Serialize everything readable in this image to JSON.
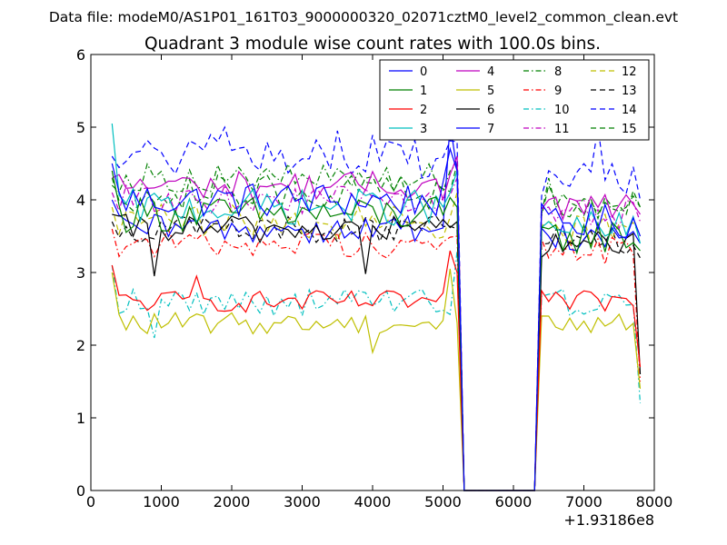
{
  "header": {
    "file_label": "Data file: modeM0/AS1P01_161T03_9000000320_02071cztM0_level2_common_clean.evt",
    "title": "Quadrant 3 module wise count rates with 100.0s bins."
  },
  "chart_data": {
    "type": "line",
    "title": "Quadrant 3 module wise count rates with 100.0s bins.",
    "xlabel": "",
    "ylabel": "",
    "x_offset_label": "+1.93186e8",
    "xlim": [
      0,
      8000
    ],
    "ylim": [
      0,
      6
    ],
    "x_ticks": [
      0,
      1000,
      2000,
      3000,
      4000,
      5000,
      6000,
      7000,
      8000
    ],
    "x_tick_labels": [
      "0",
      "1000",
      "2000",
      "3000",
      "4000",
      "5000",
      "6000",
      "7000",
      "8000"
    ],
    "y_ticks": [
      0,
      1,
      2,
      3,
      4,
      5,
      6
    ],
    "y_tick_labels": [
      "0",
      "1",
      "2",
      "3",
      "4",
      "5",
      "6"
    ],
    "grid": false,
    "legend_position": "top-right",
    "x_segments": [
      {
        "start": 300,
        "end": 5200,
        "step": 100
      },
      {
        "start": 5300,
        "end": 6300,
        "step": 100
      },
      {
        "start": 6400,
        "end": 7800,
        "step": 100
      }
    ],
    "series": [
      {
        "name": "0",
        "color": "#0000ff",
        "dash": "solid",
        "level1": 4.0,
        "level2": 3.7,
        "amp": 0.25,
        "anchors": [
          [
            300,
            4.5
          ],
          [
            5100,
            4.7
          ],
          [
            5200,
            4.4
          ],
          [
            6500,
            3.8
          ],
          [
            7800,
            3.5
          ]
        ]
      },
      {
        "name": "1",
        "color": "#008000",
        "dash": "solid",
        "level1": 3.8,
        "level2": 3.5,
        "amp": 0.25,
        "anchors": [
          [
            300,
            4.4
          ],
          [
            5200,
            3.9
          ],
          [
            6500,
            3.6
          ],
          [
            7800,
            3.3
          ]
        ]
      },
      {
        "name": "2",
        "color": "#ff0000",
        "dash": "solid",
        "level1": 2.6,
        "level2": 2.6,
        "amp": 0.15,
        "anchors": [
          [
            300,
            3.1
          ],
          [
            1500,
            2.95
          ],
          [
            5100,
            3.3
          ],
          [
            5200,
            3.0
          ],
          [
            6500,
            2.6
          ],
          [
            7800,
            1.7
          ]
        ]
      },
      {
        "name": "3",
        "color": "#00bfbf",
        "dash": "solid",
        "level1": 3.9,
        "level2": 3.6,
        "amp": 0.25,
        "anchors": [
          [
            300,
            5.05
          ],
          [
            5200,
            4.4
          ],
          [
            6500,
            3.7
          ],
          [
            7800,
            3.4
          ]
        ]
      },
      {
        "name": "4",
        "color": "#bf00bf",
        "dash": "solid",
        "level1": 4.2,
        "level2": 3.9,
        "amp": 0.2,
        "anchors": [
          [
            300,
            4.3
          ],
          [
            5200,
            4.6
          ],
          [
            6500,
            4.0
          ],
          [
            7800,
            3.8
          ]
        ]
      },
      {
        "name": "5",
        "color": "#bfbf00",
        "dash": "solid",
        "level1": 2.3,
        "level2": 2.3,
        "amp": 0.15,
        "anchors": [
          [
            300,
            3.0
          ],
          [
            4000,
            1.9
          ],
          [
            5100,
            3.05
          ],
          [
            6500,
            2.4
          ],
          [
            7800,
            1.4
          ]
        ]
      },
      {
        "name": "6",
        "color": "#000000",
        "dash": "solid",
        "level1": 3.6,
        "level2": 3.4,
        "amp": 0.2,
        "anchors": [
          [
            300,
            3.8
          ],
          [
            900,
            2.95
          ],
          [
            3900,
            2.98
          ],
          [
            5200,
            3.7
          ],
          [
            6500,
            3.3
          ],
          [
            7800,
            1.6
          ]
        ]
      },
      {
        "name": "7",
        "color": "#0000ff",
        "dash": "solid",
        "level1": 3.6,
        "level2": 3.5,
        "amp": 0.2,
        "anchors": [
          [
            300,
            4.0
          ],
          [
            5100,
            5.05
          ],
          [
            5200,
            4.4
          ],
          [
            6500,
            3.5
          ],
          [
            7800,
            3.4
          ]
        ]
      },
      {
        "name": "8",
        "color": "#008000",
        "dash": "dashdot",
        "level1": 4.3,
        "level2": 4.0,
        "amp": 0.2,
        "anchors": [
          [
            300,
            4.2
          ],
          [
            5200,
            4.5
          ],
          [
            6500,
            4.3
          ],
          [
            7800,
            3.9
          ]
        ]
      },
      {
        "name": "9",
        "color": "#ff0000",
        "dash": "dashdot",
        "level1": 3.4,
        "level2": 3.3,
        "amp": 0.2,
        "anchors": [
          [
            300,
            3.6
          ],
          [
            5200,
            3.5
          ],
          [
            6500,
            3.2
          ],
          [
            7800,
            1.5
          ]
        ]
      },
      {
        "name": "10",
        "color": "#00bfbf",
        "dash": "dashdot",
        "level1": 2.6,
        "level2": 2.6,
        "amp": 0.2,
        "anchors": [
          [
            300,
            3.1
          ],
          [
            900,
            2.1
          ],
          [
            5200,
            3.3
          ],
          [
            6500,
            2.7
          ],
          [
            7800,
            1.2
          ]
        ]
      },
      {
        "name": "11",
        "color": "#bf00bf",
        "dash": "dashdot",
        "level1": 4.0,
        "level2": 3.8,
        "amp": 0.2,
        "anchors": [
          [
            300,
            4.1
          ],
          [
            5200,
            4.3
          ],
          [
            6500,
            3.9
          ],
          [
            7800,
            3.7
          ]
        ]
      },
      {
        "name": "12",
        "color": "#bfbf00",
        "dash": "dashed",
        "level1": 3.7,
        "level2": 3.6,
        "amp": 0.25,
        "anchors": [
          [
            300,
            3.9
          ],
          [
            5200,
            4.1
          ],
          [
            6500,
            3.7
          ],
          [
            7800,
            3.5
          ]
        ]
      },
      {
        "name": "13",
        "color": "#000000",
        "dash": "dashed",
        "level1": 3.6,
        "level2": 3.4,
        "amp": 0.2,
        "anchors": [
          [
            300,
            3.7
          ],
          [
            5200,
            3.6
          ],
          [
            6500,
            3.4
          ],
          [
            7800,
            3.2
          ]
        ]
      },
      {
        "name": "14",
        "color": "#0000ff",
        "dash": "dashed",
        "level1": 4.6,
        "level2": 4.3,
        "amp": 0.3,
        "anchors": [
          [
            300,
            4.6
          ],
          [
            1900,
            5.0
          ],
          [
            3500,
            4.95
          ],
          [
            5200,
            4.8
          ],
          [
            6500,
            4.4
          ],
          [
            7200,
            5.0
          ],
          [
            7800,
            4.0
          ]
        ]
      },
      {
        "name": "15",
        "color": "#008000",
        "dash": "dashed",
        "level1": 4.1,
        "level2": 3.9,
        "amp": 0.25,
        "anchors": [
          [
            300,
            4.3
          ],
          [
            5200,
            4.5
          ],
          [
            6500,
            4.2
          ],
          [
            7800,
            3.9
          ]
        ]
      }
    ]
  }
}
